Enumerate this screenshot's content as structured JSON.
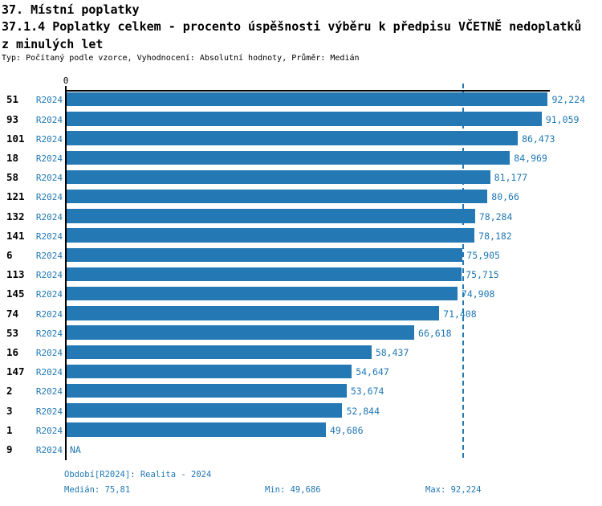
{
  "theme": {
    "accent_text_color": "#1f77b4",
    "bar_color": "#2478b4",
    "median_line_color": "#2478b4",
    "text_color": "#000000",
    "background": "#ffffff"
  },
  "header": {
    "title": "37. Místní poplatky",
    "subtitle_line1": "37.1.4 Poplatky celkem - procento úspěšnosti výběru k předpisu VČETNĚ nedoplatků",
    "subtitle_line2": "z minulých let",
    "meta": "Typ: Počítaný podle vzorce, Vyhodnocení: Absolutní hodnoty, Průměr: Medián"
  },
  "chart_data": {
    "type": "bar",
    "orientation": "horizontal",
    "title": "37.1.4 Poplatky celkem - procento úspěšnosti výběru k předpisu VČETNĚ nedoplatků z minulých let",
    "categories": [
      "51",
      "93",
      "101",
      "18",
      "58",
      "121",
      "132",
      "141",
      "6",
      "113",
      "145",
      "74",
      "53",
      "16",
      "147",
      "2",
      "3",
      "1",
      "9"
    ],
    "series": [
      {
        "name": "R2024",
        "values": [
          92.224,
          91.059,
          86.473,
          84.969,
          81.177,
          80.66,
          78.284,
          78.182,
          75.905,
          75.715,
          74.908,
          71.408,
          66.618,
          58.437,
          54.647,
          53.674,
          52.844,
          49.686,
          null
        ]
      }
    ],
    "value_labels": [
      "92,224",
      "91,059",
      "86,473",
      "84,969",
      "81,177",
      "80,66",
      "78,284",
      "78,182",
      "75,905",
      "75,715",
      "74,908",
      "71,408",
      "66,618",
      "58,437",
      "54,647",
      "53,674",
      "52,844",
      "49,686",
      "NA"
    ],
    "origin_tick_label": "0",
    "xlim": [
      0,
      92.224
    ],
    "grid": false,
    "legend_position": "none",
    "median": {
      "value": 75.81,
      "label": "75,81"
    },
    "min": {
      "value": 49.686,
      "label": "49,686"
    },
    "max": {
      "value": 92.224,
      "label": "92,224"
    }
  },
  "footer": {
    "period_line": "Období[R2024]: Realita - 2024",
    "median_line": "Medián: 75,81",
    "min_line": "Min: 49,686",
    "max_line": "Max: 92,224"
  }
}
